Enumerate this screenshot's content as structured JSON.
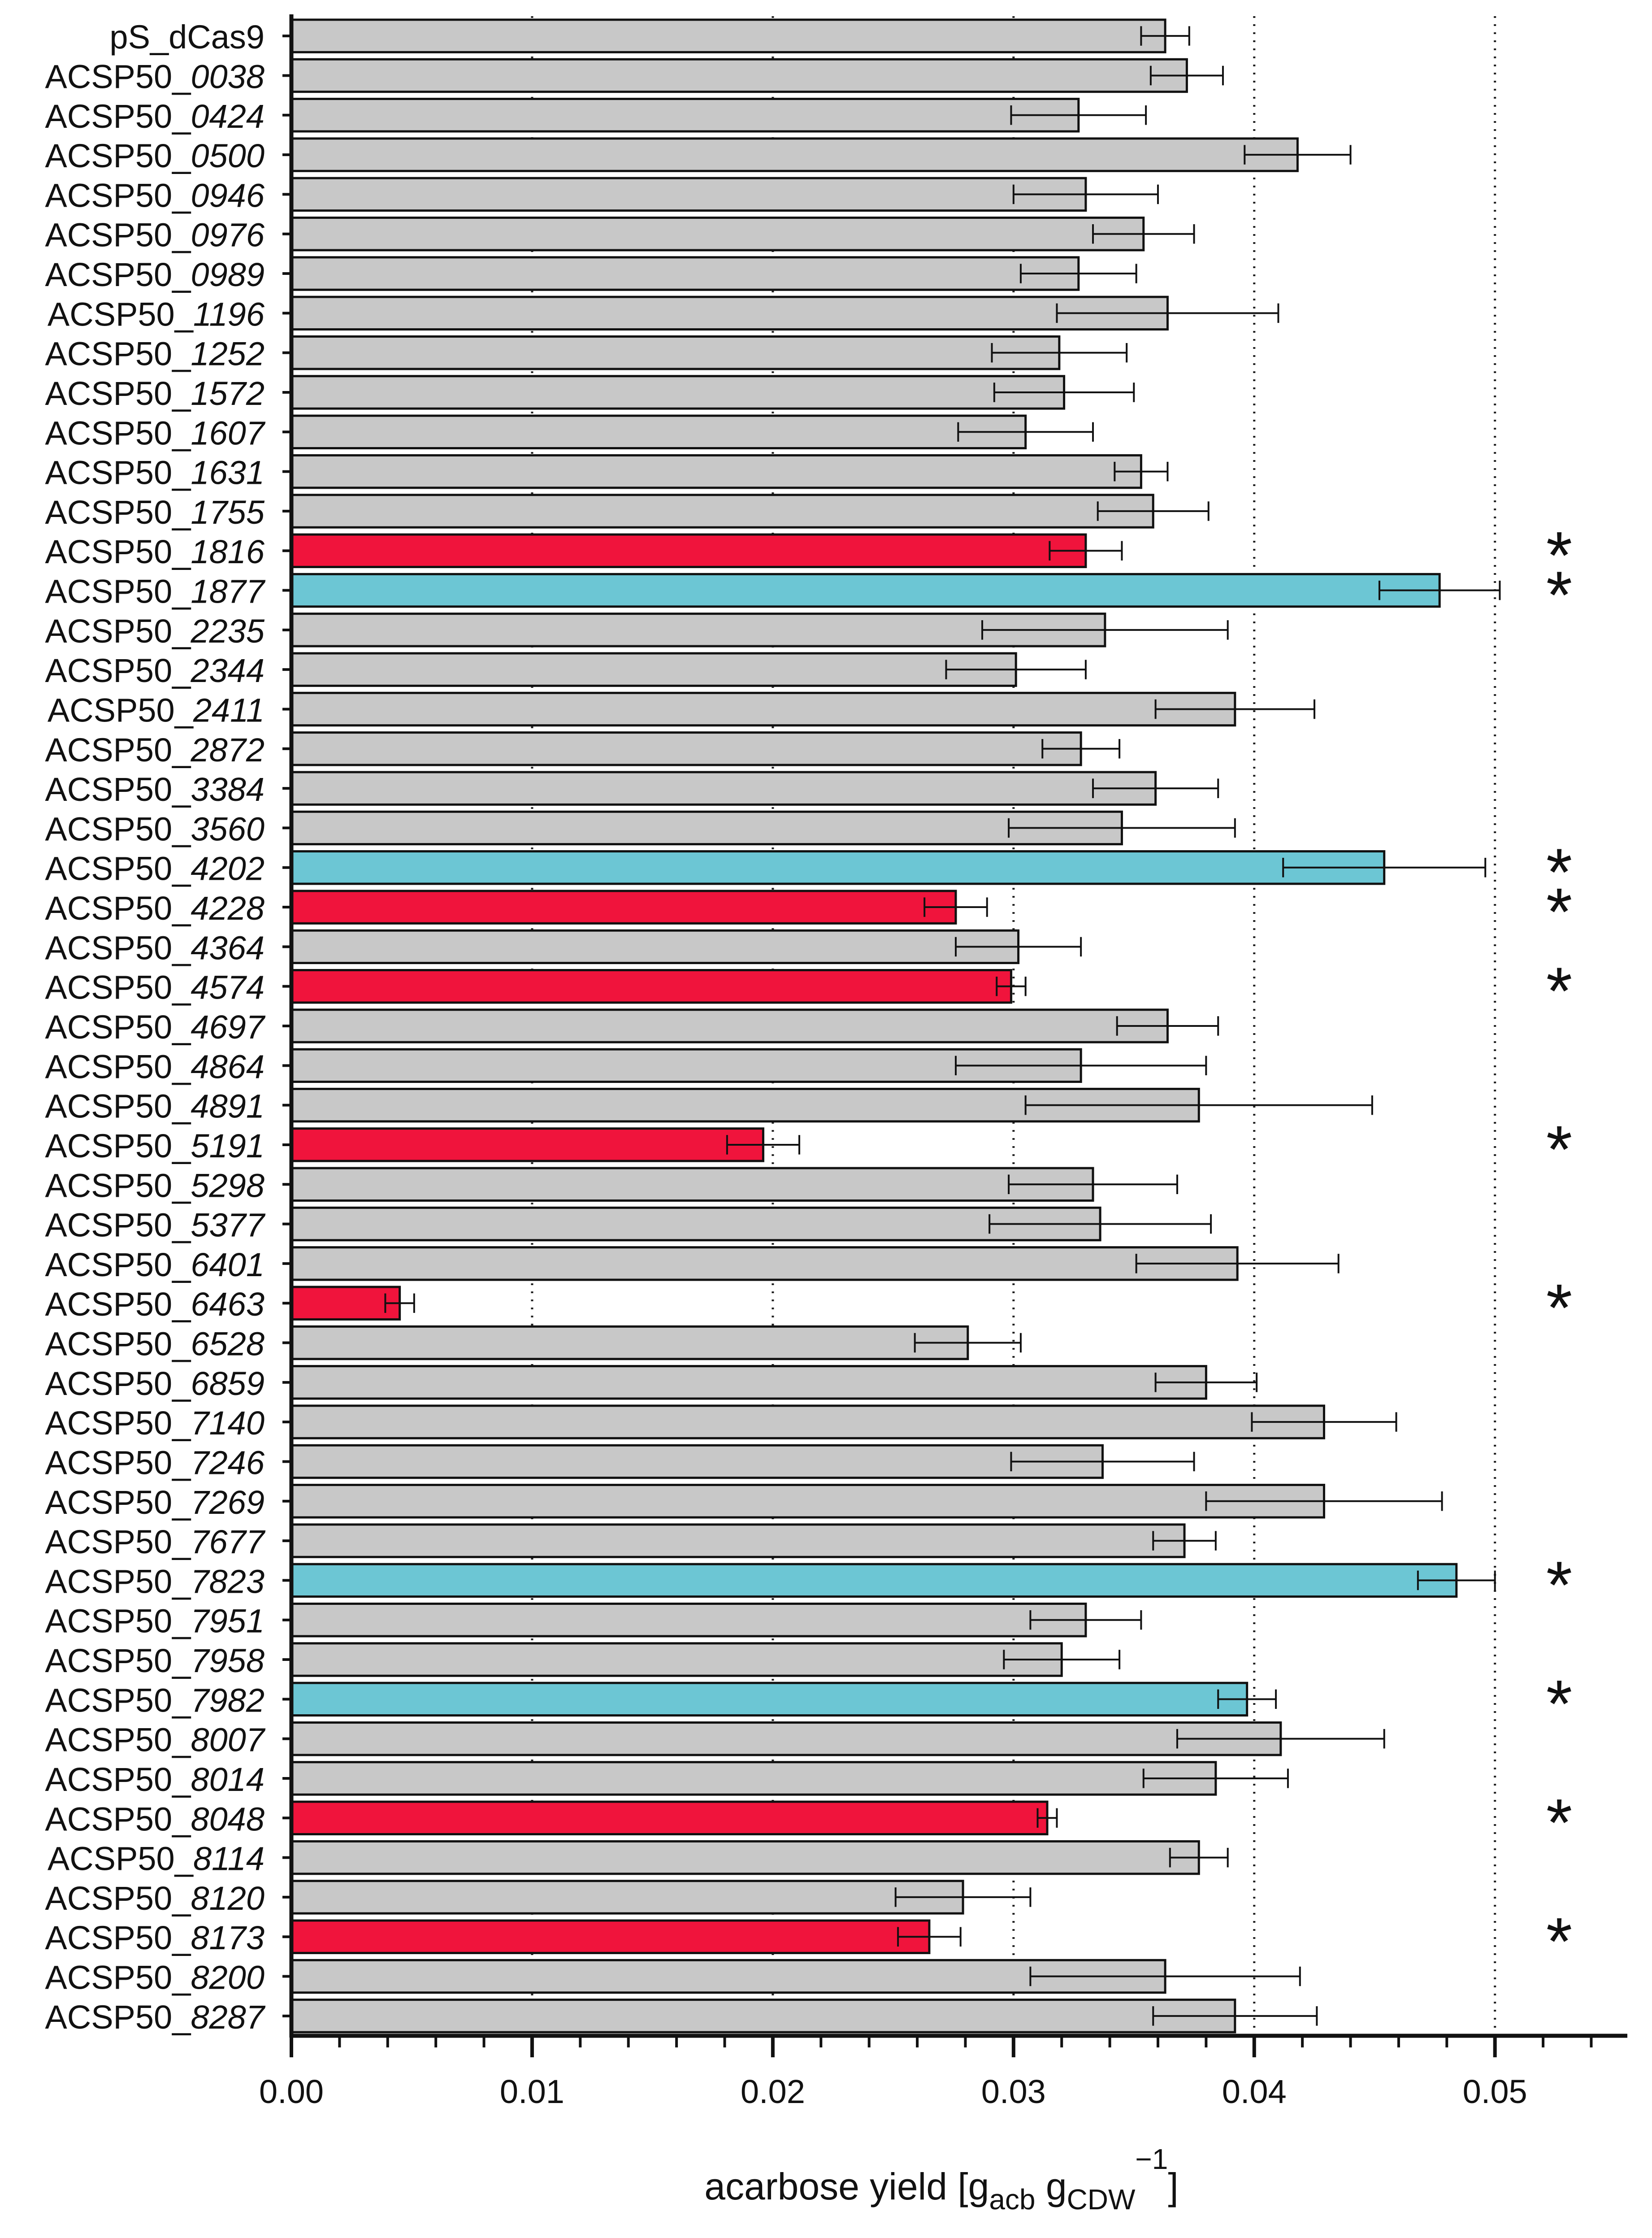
{
  "chart_data": {
    "type": "bar",
    "orientation": "horizontal",
    "title": "",
    "xlabel": {
      "main": "acarbose yield [g",
      "sub1": "acb",
      "mid": " g",
      "sub2": "CDW",
      "sup": "−1",
      "end": "]"
    },
    "ylabel": "",
    "xlim": [
      0,
      0.0555
    ],
    "xticks": [
      "0.00",
      "0.01",
      "0.02",
      "0.03",
      "0.04",
      "0.05"
    ],
    "tick_values": [
      0,
      0.01,
      0.02,
      0.03,
      0.04,
      0.05
    ],
    "gridlines": [
      0.01,
      0.02,
      0.03,
      0.04,
      0.05
    ],
    "significance_marker": "*",
    "colors": {
      "default": "#c8c8c8",
      "decreased": "#f0143c",
      "increased": "#6cc6d4",
      "edge": "#111111"
    },
    "categories": [
      {
        "prefix": "pS_dCas9",
        "suffix": "",
        "value": 0.0363,
        "err": 0.001,
        "color": "default",
        "sig": ""
      },
      {
        "prefix": "ACSP50_",
        "suffix": "0038",
        "value": 0.0372,
        "err": 0.0015,
        "color": "default",
        "sig": ""
      },
      {
        "prefix": "ACSP50_",
        "suffix": "0424",
        "value": 0.0327,
        "err": 0.0028,
        "color": "default",
        "sig": ""
      },
      {
        "prefix": "ACSP50_",
        "suffix": "0500",
        "value": 0.0418,
        "err": 0.0022,
        "color": "default",
        "sig": ""
      },
      {
        "prefix": "ACSP50_",
        "suffix": "0946",
        "value": 0.033,
        "err": 0.003,
        "color": "default",
        "sig": ""
      },
      {
        "prefix": "ACSP50_",
        "suffix": "0976",
        "value": 0.0354,
        "err": 0.0021,
        "color": "default",
        "sig": ""
      },
      {
        "prefix": "ACSP50_",
        "suffix": "0989",
        "value": 0.0327,
        "err": 0.0024,
        "color": "default",
        "sig": ""
      },
      {
        "prefix": "ACSP50_",
        "suffix": "1196",
        "value": 0.0364,
        "err": 0.0046,
        "color": "default",
        "sig": ""
      },
      {
        "prefix": "ACSP50_",
        "suffix": "1252",
        "value": 0.0319,
        "err": 0.0028,
        "color": "default",
        "sig": ""
      },
      {
        "prefix": "ACSP50_",
        "suffix": "1572",
        "value": 0.0321,
        "err": 0.0029,
        "color": "default",
        "sig": ""
      },
      {
        "prefix": "ACSP50_",
        "suffix": "1607",
        "value": 0.0305,
        "err": 0.0028,
        "color": "default",
        "sig": ""
      },
      {
        "prefix": "ACSP50_",
        "suffix": "1631",
        "value": 0.0353,
        "err": 0.0011,
        "color": "default",
        "sig": ""
      },
      {
        "prefix": "ACSP50_",
        "suffix": "1755",
        "value": 0.0358,
        "err": 0.0023,
        "color": "default",
        "sig": ""
      },
      {
        "prefix": "ACSP50_",
        "suffix": "1816",
        "value": 0.033,
        "err": 0.0015,
        "color": "decreased",
        "sig": "*"
      },
      {
        "prefix": "ACSP50_",
        "suffix": "1877",
        "value": 0.0477,
        "err": 0.0025,
        "color": "increased",
        "sig": "*"
      },
      {
        "prefix": "ACSP50_",
        "suffix": "2235",
        "value": 0.0338,
        "err": 0.0051,
        "color": "default",
        "sig": ""
      },
      {
        "prefix": "ACSP50_",
        "suffix": "2344",
        "value": 0.0301,
        "err": 0.0029,
        "color": "default",
        "sig": ""
      },
      {
        "prefix": "ACSP50_",
        "suffix": "2411",
        "value": 0.0392,
        "err": 0.0033,
        "color": "default",
        "sig": ""
      },
      {
        "prefix": "ACSP50_",
        "suffix": "2872",
        "value": 0.0328,
        "err": 0.0016,
        "color": "default",
        "sig": ""
      },
      {
        "prefix": "ACSP50_",
        "suffix": "3384",
        "value": 0.0359,
        "err": 0.0026,
        "color": "default",
        "sig": ""
      },
      {
        "prefix": "ACSP50_",
        "suffix": "3560",
        "value": 0.0345,
        "err": 0.0047,
        "color": "default",
        "sig": ""
      },
      {
        "prefix": "ACSP50_",
        "suffix": "4202",
        "value": 0.0454,
        "err": 0.0042,
        "color": "increased",
        "sig": "*"
      },
      {
        "prefix": "ACSP50_",
        "suffix": "4228",
        "value": 0.0276,
        "err": 0.0013,
        "color": "decreased",
        "sig": "*"
      },
      {
        "prefix": "ACSP50_",
        "suffix": "4364",
        "value": 0.0302,
        "err": 0.0026,
        "color": "default",
        "sig": ""
      },
      {
        "prefix": "ACSP50_",
        "suffix": "4574",
        "value": 0.0299,
        "err": 0.0006,
        "color": "decreased",
        "sig": "*"
      },
      {
        "prefix": "ACSP50_",
        "suffix": "4697",
        "value": 0.0364,
        "err": 0.0021,
        "color": "default",
        "sig": ""
      },
      {
        "prefix": "ACSP50_",
        "suffix": "4864",
        "value": 0.0328,
        "err": 0.0052,
        "color": "default",
        "sig": ""
      },
      {
        "prefix": "ACSP50_",
        "suffix": "4891",
        "value": 0.0377,
        "err": 0.0072,
        "color": "default",
        "sig": ""
      },
      {
        "prefix": "ACSP50_",
        "suffix": "5191",
        "value": 0.0196,
        "err": 0.0015,
        "color": "decreased",
        "sig": "*"
      },
      {
        "prefix": "ACSP50_",
        "suffix": "5298",
        "value": 0.0333,
        "err": 0.0035,
        "color": "default",
        "sig": ""
      },
      {
        "prefix": "ACSP50_",
        "suffix": "5377",
        "value": 0.0336,
        "err": 0.0046,
        "color": "default",
        "sig": ""
      },
      {
        "prefix": "ACSP50_",
        "suffix": "6401",
        "value": 0.0393,
        "err": 0.0042,
        "color": "default",
        "sig": ""
      },
      {
        "prefix": "ACSP50_",
        "suffix": "6463",
        "value": 0.0045,
        "err": 0.0006,
        "color": "decreased",
        "sig": "*"
      },
      {
        "prefix": "ACSP50_",
        "suffix": "6528",
        "value": 0.0281,
        "err": 0.0022,
        "color": "default",
        "sig": ""
      },
      {
        "prefix": "ACSP50_",
        "suffix": "6859",
        "value": 0.038,
        "err": 0.0021,
        "color": "default",
        "sig": ""
      },
      {
        "prefix": "ACSP50_",
        "suffix": "7140",
        "value": 0.0429,
        "err": 0.003,
        "color": "default",
        "sig": ""
      },
      {
        "prefix": "ACSP50_",
        "suffix": "7246",
        "value": 0.0337,
        "err": 0.0038,
        "color": "default",
        "sig": ""
      },
      {
        "prefix": "ACSP50_",
        "suffix": "7269",
        "value": 0.0429,
        "err": 0.0049,
        "color": "default",
        "sig": ""
      },
      {
        "prefix": "ACSP50_",
        "suffix": "7677",
        "value": 0.0371,
        "err": 0.0013,
        "color": "default",
        "sig": ""
      },
      {
        "prefix": "ACSP50_",
        "suffix": "7823",
        "value": 0.0484,
        "err": 0.0016,
        "color": "increased",
        "sig": "*"
      },
      {
        "prefix": "ACSP50_",
        "suffix": "7951",
        "value": 0.033,
        "err": 0.0023,
        "color": "default",
        "sig": ""
      },
      {
        "prefix": "ACSP50_",
        "suffix": "7958",
        "value": 0.032,
        "err": 0.0024,
        "color": "default",
        "sig": ""
      },
      {
        "prefix": "ACSP50_",
        "suffix": "7982",
        "value": 0.0397,
        "err": 0.0012,
        "color": "increased",
        "sig": "*"
      },
      {
        "prefix": "ACSP50_",
        "suffix": "8007",
        "value": 0.0411,
        "err": 0.0043,
        "color": "default",
        "sig": ""
      },
      {
        "prefix": "ACSP50_",
        "suffix": "8014",
        "value": 0.0384,
        "err": 0.003,
        "color": "default",
        "sig": ""
      },
      {
        "prefix": "ACSP50_",
        "suffix": "8048",
        "value": 0.0314,
        "err": 0.0004,
        "color": "decreased",
        "sig": "*"
      },
      {
        "prefix": "ACSP50_",
        "suffix": "8114",
        "value": 0.0377,
        "err": 0.0012,
        "color": "default",
        "sig": ""
      },
      {
        "prefix": "ACSP50_",
        "suffix": "8120",
        "value": 0.0279,
        "err": 0.0028,
        "color": "default",
        "sig": ""
      },
      {
        "prefix": "ACSP50_",
        "suffix": "8173",
        "value": 0.0265,
        "err": 0.0013,
        "color": "decreased",
        "sig": "*"
      },
      {
        "prefix": "ACSP50_",
        "suffix": "8200",
        "value": 0.0363,
        "err": 0.0056,
        "color": "default",
        "sig": ""
      },
      {
        "prefix": "ACSP50_",
        "suffix": "8287",
        "value": 0.0392,
        "err": 0.0034,
        "color": "default",
        "sig": ""
      }
    ]
  }
}
